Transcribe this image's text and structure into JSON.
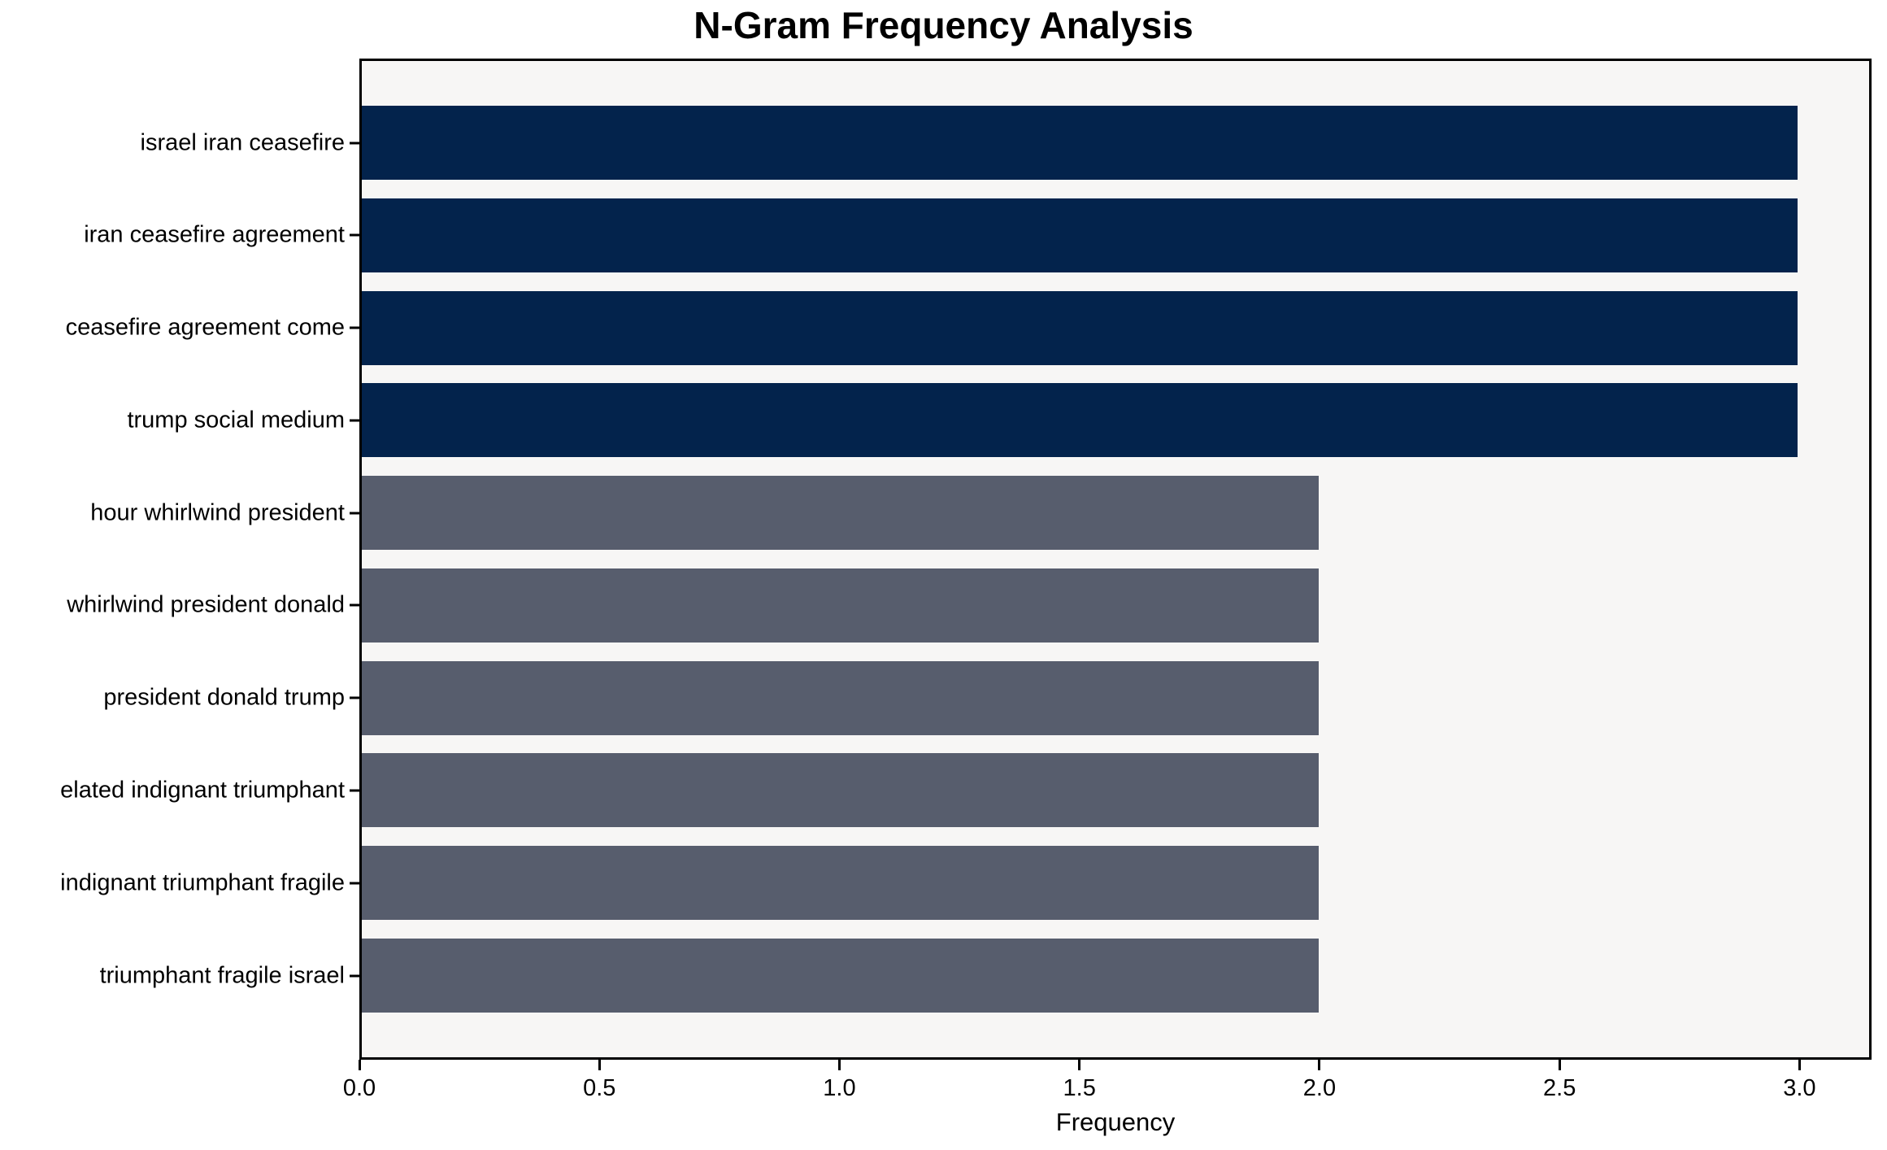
{
  "chart_data": {
    "type": "bar",
    "orientation": "horizontal",
    "title": "N-Gram Frequency Analysis",
    "xlabel": "Frequency",
    "ylabel": "",
    "categories": [
      "israel iran ceasefire",
      "iran ceasefire agreement",
      "ceasefire agreement come",
      "trump social medium",
      "hour whirlwind president",
      "whirlwind president donald",
      "president donald trump",
      "elated indignant triumphant",
      "indignant triumphant fragile",
      "triumphant fragile israel"
    ],
    "values": [
      3,
      3,
      3,
      3,
      2,
      2,
      2,
      2,
      2,
      2
    ],
    "bar_colors": [
      "#03234c",
      "#03234c",
      "#03234c",
      "#03234c",
      "#575d6d",
      "#575d6d",
      "#575d6d",
      "#575d6d",
      "#575d6d",
      "#575d6d"
    ],
    "xlim": [
      0,
      3.15
    ],
    "xticks": [
      "0.0",
      "0.5",
      "1.0",
      "1.5",
      "2.0",
      "2.5",
      "3.0"
    ],
    "xtick_values": [
      0,
      0.5,
      1.0,
      1.5,
      2.0,
      2.5,
      3.0
    ],
    "grid": false,
    "legend": null,
    "plot_bg": "#f7f6f5",
    "figure_bg": "#ffffff",
    "frame_color": "#000000"
  }
}
